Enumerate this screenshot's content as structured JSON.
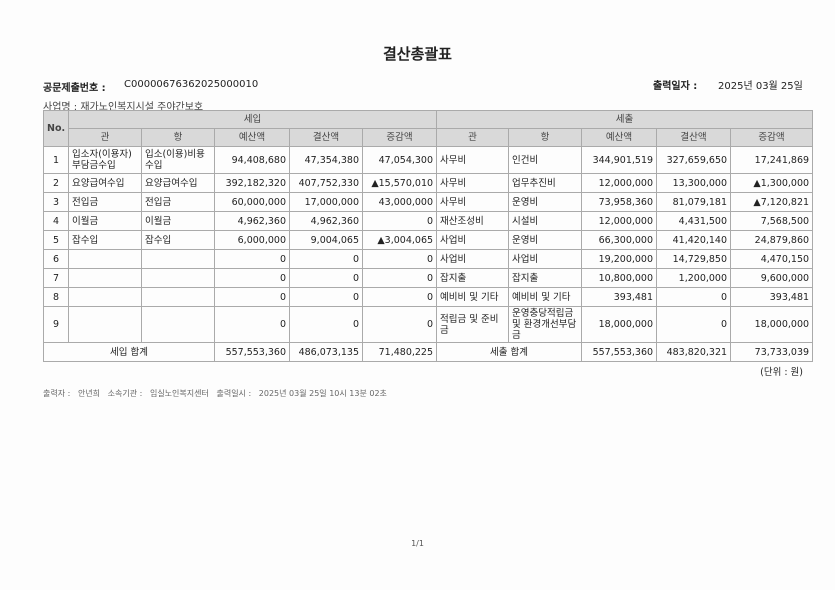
{
  "title": "결산총괄표",
  "doc_no_label": "공문제출번호 :",
  "doc_no": "C00000676362025000010",
  "print_date_label": "출력일자 :",
  "print_date": "2025년 03월 25일",
  "business_label": "사업명 :",
  "business_name": "재가노인복지시설 주야간보호",
  "headers": {
    "no": "No.",
    "revenue": "세입",
    "expense": "세출",
    "gwan": "관",
    "hang": "항",
    "budget": "예산액",
    "settled": "결산액",
    "diff": "증감액"
  },
  "rows": [
    {
      "no": "1",
      "r_gwan": "입소자(이용자)부담금수입",
      "r_hang": "입소(이용)비용수입",
      "r_budget": "94,408,680",
      "r_settled": "47,354,380",
      "r_diff": "47,054,300",
      "e_gwan": "사무비",
      "e_hang": "인건비",
      "e_budget": "344,901,519",
      "e_settled": "327,659,650",
      "e_diff": "17,241,869"
    },
    {
      "no": "2",
      "r_gwan": "요양급여수입",
      "r_hang": "요양급여수입",
      "r_budget": "392,182,320",
      "r_settled": "407,752,330",
      "r_diff": "▲15,570,010",
      "e_gwan": "사무비",
      "e_hang": "업무추진비",
      "e_budget": "12,000,000",
      "e_settled": "13,300,000",
      "e_diff": "▲1,300,000"
    },
    {
      "no": "3",
      "r_gwan": "전입금",
      "r_hang": "전입금",
      "r_budget": "60,000,000",
      "r_settled": "17,000,000",
      "r_diff": "43,000,000",
      "e_gwan": "사무비",
      "e_hang": "운영비",
      "e_budget": "73,958,360",
      "e_settled": "81,079,181",
      "e_diff": "▲7,120,821"
    },
    {
      "no": "4",
      "r_gwan": "이월금",
      "r_hang": "이월금",
      "r_budget": "4,962,360",
      "r_settled": "4,962,360",
      "r_diff": "0",
      "e_gwan": "재산조성비",
      "e_hang": "시설비",
      "e_budget": "12,000,000",
      "e_settled": "4,431,500",
      "e_diff": "7,568,500"
    },
    {
      "no": "5",
      "r_gwan": "잡수입",
      "r_hang": "잡수입",
      "r_budget": "6,000,000",
      "r_settled": "9,004,065",
      "r_diff": "▲3,004,065",
      "e_gwan": "사업비",
      "e_hang": "운영비",
      "e_budget": "66,300,000",
      "e_settled": "41,420,140",
      "e_diff": "24,879,860"
    },
    {
      "no": "6",
      "r_gwan": "",
      "r_hang": "",
      "r_budget": "0",
      "r_settled": "0",
      "r_diff": "0",
      "e_gwan": "사업비",
      "e_hang": "사업비",
      "e_budget": "19,200,000",
      "e_settled": "14,729,850",
      "e_diff": "4,470,150"
    },
    {
      "no": "7",
      "r_gwan": "",
      "r_hang": "",
      "r_budget": "0",
      "r_settled": "0",
      "r_diff": "0",
      "e_gwan": "잡지출",
      "e_hang": "잡지출",
      "e_budget": "10,800,000",
      "e_settled": "1,200,000",
      "e_diff": "9,600,000"
    },
    {
      "no": "8",
      "r_gwan": "",
      "r_hang": "",
      "r_budget": "0",
      "r_settled": "0",
      "r_diff": "0",
      "e_gwan": "예비비 및 기타",
      "e_hang": "예비비 및 기타",
      "e_budget": "393,481",
      "e_settled": "0",
      "e_diff": "393,481"
    },
    {
      "no": "9",
      "r_gwan": "",
      "r_hang": "",
      "r_budget": "0",
      "r_settled": "0",
      "r_diff": "0",
      "e_gwan": "적립금 및 준비금",
      "e_hang": "운영충당적립금 및 환경개선부담금",
      "e_budget": "18,000,000",
      "e_settled": "0",
      "e_diff": "18,000,000"
    }
  ],
  "totals": {
    "r_label": "세입 합계",
    "r_budget": "557,553,360",
    "r_settled": "486,073,135",
    "r_diff": "71,480,225",
    "e_label": "세출 합계",
    "e_budget": "557,553,360",
    "e_settled": "483,820,321",
    "e_diff": "73,733,039"
  },
  "unit": "(단위 : 원)",
  "footer": "출력자 :   안년희   소속기관 :   임실노인복지센터   출력일시 :   2025년 03월 25일 10시 13분 02초",
  "page": "1/1"
}
